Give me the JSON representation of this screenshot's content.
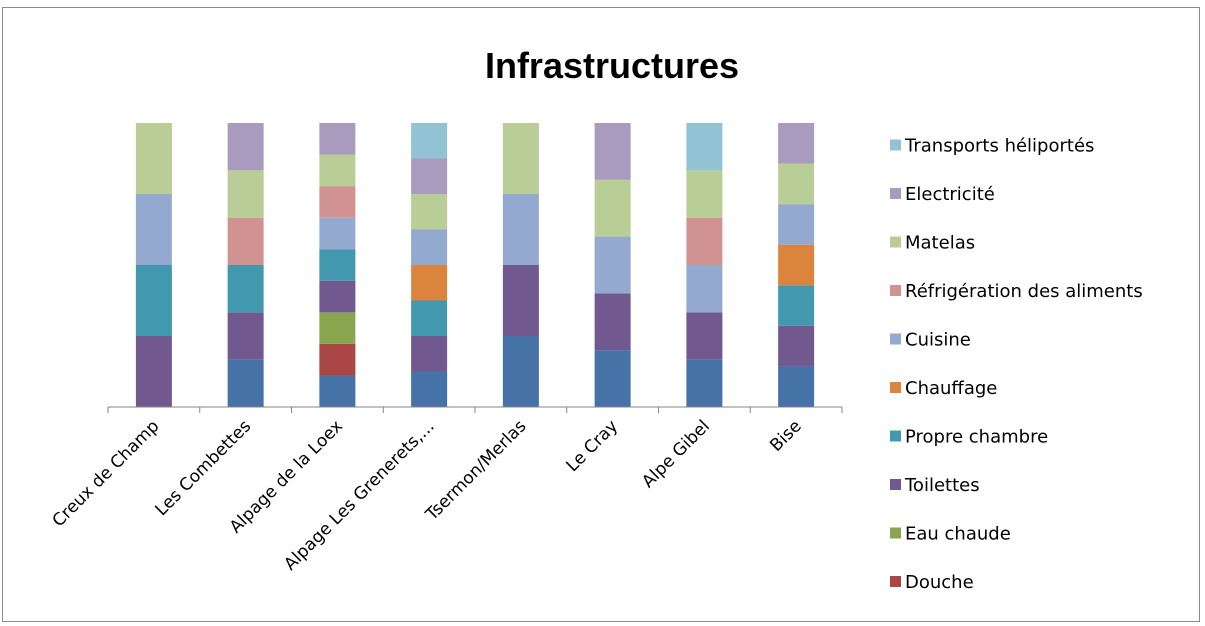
{
  "chart_data": {
    "type": "bar",
    "stacked": true,
    "title": "Infrastructures",
    "xlabel": "",
    "ylabel": "",
    "categories": [
      "Creux de Champ",
      "Les Combettes",
      "Alpage de la Loex",
      "Alpage Les Grenerets,...",
      "Tsermon/Merlas",
      "Le Cray",
      "Alpe Gibel",
      "Bise"
    ],
    "series": [
      {
        "name": "Douche",
        "color": "#4572a7",
        "values": [
          0,
          1,
          1,
          1,
          1,
          1,
          1,
          1
        ]
      },
      {
        "name": "Eau chaude",
        "color": "#aa4643",
        "values": [
          0,
          0,
          1,
          0,
          0,
          0,
          0,
          0
        ]
      },
      {
        "name": "Toilettes",
        "color": "#89a54e",
        "values": [
          0,
          0,
          1,
          0,
          0,
          0,
          0,
          0
        ]
      },
      {
        "name": "Propre chambre",
        "color": "#71588f",
        "values": [
          1,
          1,
          1,
          1,
          1,
          1,
          1,
          1
        ]
      },
      {
        "name": "Chauffage",
        "color": "#4198af",
        "values": [
          1,
          1,
          1,
          1,
          0,
          0,
          0,
          1
        ]
      },
      {
        "name": "Cuisine",
        "color": "#db843d",
        "values": [
          0,
          0,
          0,
          1,
          0,
          0,
          0,
          1
        ]
      },
      {
        "name": "Réfrigération des aliments",
        "color": "#93a9cf",
        "values": [
          1,
          0,
          1,
          1,
          1,
          1,
          1,
          1
        ]
      },
      {
        "name": "Matelas",
        "color": "#d19392",
        "values": [
          0,
          1,
          1,
          0,
          0,
          0,
          1,
          0
        ]
      },
      {
        "name": "Electricité",
        "color": "#b9cd96",
        "values": [
          1,
          1,
          1,
          1,
          1,
          1,
          1,
          1
        ]
      },
      {
        "name": "Transports héliportés",
        "color": "#a99bbd",
        "values": [
          0,
          1,
          1,
          1,
          0,
          1,
          0,
          1
        ]
      },
      {
        "name": "",
        "color": "#92c3d4",
        "values": [
          0,
          0,
          0,
          1,
          0,
          0,
          1,
          0
        ]
      }
    ],
    "legend": {
      "position": "right",
      "entries": [
        {
          "label": "Transports héliportés",
          "color": "#92c3d4"
        },
        {
          "label": "Electricité",
          "color": "#a99bbd"
        },
        {
          "label": "Matelas",
          "color": "#b9cd96"
        },
        {
          "label": "Réfrigération des aliments",
          "color": "#d19392"
        },
        {
          "label": "Cuisine",
          "color": "#93a9cf"
        },
        {
          "label": "Chauffage",
          "color": "#db843d"
        },
        {
          "label": "Propre chambre",
          "color": "#4198af"
        },
        {
          "label": "Toilettes",
          "color": "#71588f"
        },
        {
          "label": "Eau chaude",
          "color": "#89a54e"
        },
        {
          "label": "Douche",
          "color": "#aa4643"
        }
      ]
    },
    "normalized": true,
    "grid": false
  }
}
